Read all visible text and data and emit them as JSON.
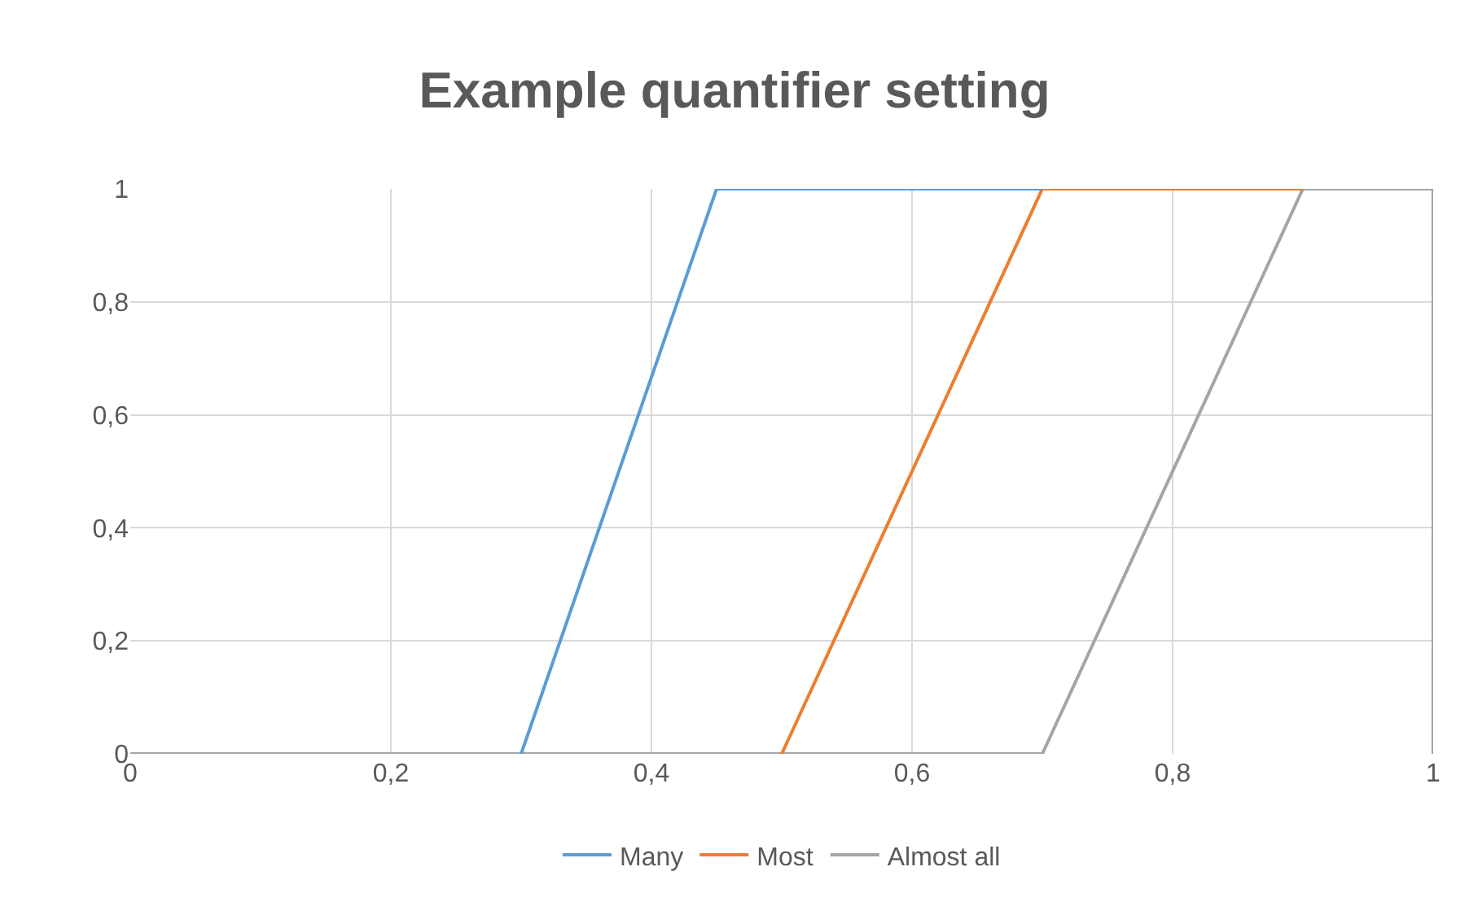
{
  "chart_data": {
    "type": "line",
    "title": "Example quantifier setting",
    "series": [
      {
        "name": "Many",
        "color": "#5b9bd5",
        "x": [
          0.3,
          0.45,
          0.7
        ],
        "values": [
          0,
          1,
          1
        ]
      },
      {
        "name": "Most",
        "color": "#ed7d31",
        "x": [
          0.5,
          0.7,
          0.9
        ],
        "values": [
          0,
          1,
          1
        ]
      },
      {
        "name": "Almost all",
        "color": "#a5a5a5",
        "x": [
          0,
          0.7,
          0.9,
          1,
          1
        ],
        "values": [
          0,
          0,
          1,
          1,
          0
        ]
      }
    ],
    "xlim": [
      0,
      1
    ],
    "ylim": [
      0,
      1
    ],
    "xticks": [
      0,
      {
        "value": 0.2,
        "label": "0,2"
      },
      {
        "value": 0.4,
        "label": "0,4"
      },
      {
        "value": 0.6,
        "label": "0,6"
      },
      {
        "value": 0.8,
        "label": "0,8"
      },
      1
    ],
    "yticks": [
      0,
      {
        "value": 0.2,
        "label": "0,2"
      },
      {
        "value": 0.4,
        "label": "0,4"
      },
      {
        "value": 0.6,
        "label": "0,6"
      },
      {
        "value": 0.8,
        "label": "0,8"
      },
      1
    ],
    "grid": true,
    "legend": "bottom",
    "marker": "none",
    "line_style": "solid"
  }
}
